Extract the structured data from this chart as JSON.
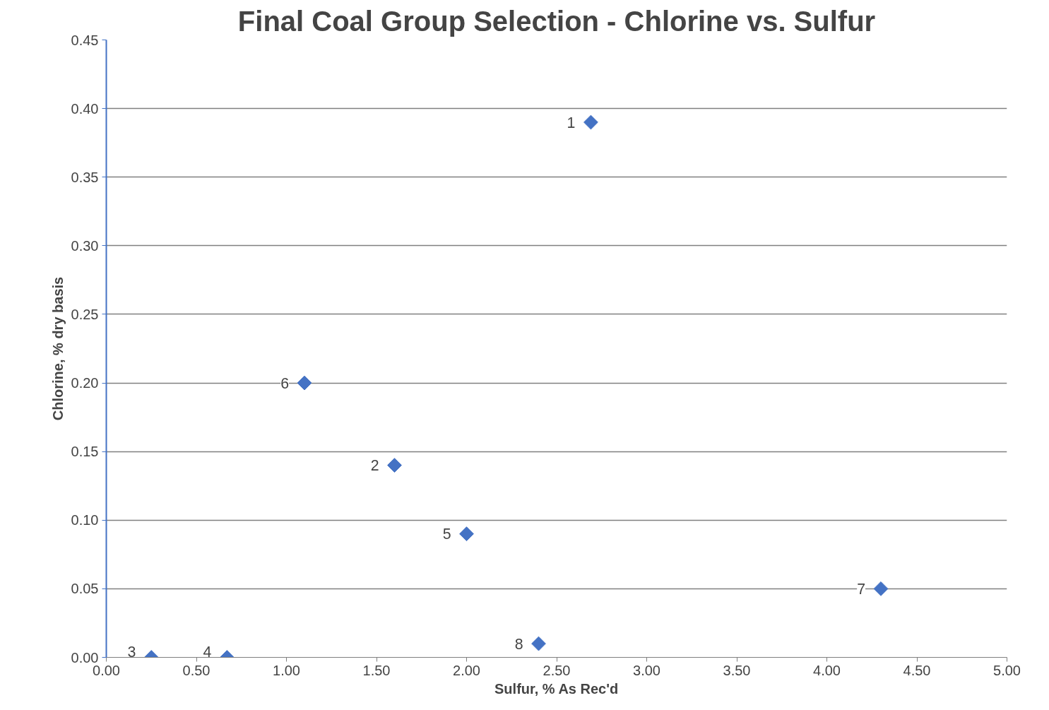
{
  "chart_data": {
    "type": "scatter",
    "title": "Final Coal Group Selection - Chlorine vs. Sulfur",
    "xlabel": "Sulfur, % As Rec'd",
    "ylabel": "Chlorine, % dry basis",
    "x": [
      2.69,
      1.6,
      0.25,
      0.67,
      2.0,
      1.1,
      4.3,
      2.4
    ],
    "series": [
      {
        "color": "#4472c4",
        "values": [
          0.39,
          0.14,
          0.0,
          0.0,
          0.09,
          0.2,
          0.05,
          0.01
        ]
      }
    ],
    "marker": "diamond",
    "grid": "y",
    "xlim": [
      0,
      5
    ],
    "xticks": [
      {
        "value": 0,
        "label": "0.00"
      },
      {
        "value": 0.5,
        "label": "0.50"
      },
      {
        "value": 1,
        "label": "1.00"
      },
      {
        "value": 1.5,
        "label": "1.50"
      },
      {
        "value": 2,
        "label": "2.00"
      },
      {
        "value": 2.5,
        "label": "2.50"
      },
      {
        "value": 3,
        "label": "3.00"
      },
      {
        "value": 3.5,
        "label": "3.50"
      },
      {
        "value": 4,
        "label": "4.00"
      },
      {
        "value": 4.5,
        "label": "4.50"
      },
      {
        "value": 5,
        "label": "5.00"
      }
    ],
    "ylim": [
      0,
      0.45
    ],
    "yticks": [
      {
        "value": 0,
        "label": "0.00"
      },
      {
        "value": 0.05,
        "label": "0.05"
      },
      {
        "value": 0.1,
        "label": "0.10"
      },
      {
        "value": 0.15,
        "label": "0.15"
      },
      {
        "value": 0.2,
        "label": "0.20"
      },
      {
        "value": 0.25,
        "label": "0.25"
      },
      {
        "value": 0.3,
        "label": "0.30"
      },
      {
        "value": 0.35,
        "label": "0.35"
      },
      {
        "value": 0.4,
        "label": "0.40"
      },
      {
        "value": 0.45,
        "label": "0.45"
      }
    ],
    "annotations": [
      {
        "text": "1",
        "x": 2.69,
        "y": 0.39
      },
      {
        "text": "2",
        "x": 1.6,
        "y": 0.14
      },
      {
        "text": "3",
        "x": 0.25,
        "y": 0.0
      },
      {
        "text": "4",
        "x": 0.67,
        "y": 0.0
      },
      {
        "text": "5",
        "x": 2.0,
        "y": 0.09
      },
      {
        "text": "6",
        "x": 1.1,
        "y": 0.2
      },
      {
        "text": "7",
        "x": 4.3,
        "y": 0.05
      },
      {
        "text": "8",
        "x": 2.4,
        "y": 0.01
      }
    ]
  }
}
